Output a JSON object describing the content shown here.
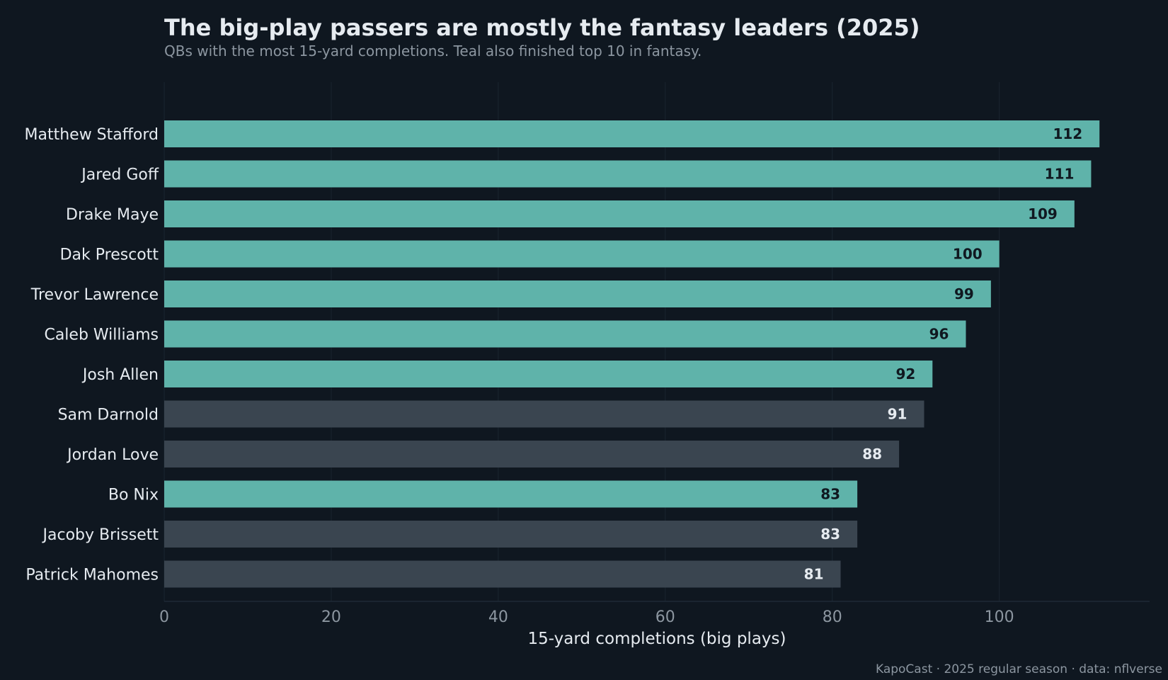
{
  "header": {
    "title": "The big-play passers are mostly the fantasy leaders (2025)",
    "subtitle": "QBs with the most 15-yard completions. Teal also finished top 10 in fantasy."
  },
  "footer": {
    "credit": "KapoCast · 2025 regular season · data: nflverse"
  },
  "colors": {
    "background": "#0f1720",
    "top10": "#5fb3aa",
    "other": "#3a4550",
    "label_dark": "#101820",
    "label_light": "#e6ebf0",
    "axis_text": "#8c96a0",
    "category_text": "#e6ebf0",
    "grid": "#1a2530"
  },
  "chart_data": {
    "type": "bar",
    "orientation": "horizontal",
    "title": "The big-play passers are mostly the fantasy leaders (2025)",
    "subtitle": "QBs with the most 15-yard completions. Teal also finished top 10 in fantasy.",
    "xlabel": "15-yard completions (big plays)",
    "ylabel": "",
    "xlim": [
      0,
      118
    ],
    "xticks": [
      0,
      20,
      40,
      60,
      80,
      100
    ],
    "grid": "vertical",
    "legend": "none",
    "categories": [
      "Matthew Stafford",
      "Jared Goff",
      "Drake Maye",
      "Dak Prescott",
      "Trevor Lawrence",
      "Caleb Williams",
      "Josh Allen",
      "Sam Darnold",
      "Jordan Love",
      "Bo Nix",
      "Jacoby Brissett",
      "Patrick Mahomes"
    ],
    "values": [
      112,
      111,
      109,
      100,
      99,
      96,
      92,
      91,
      88,
      83,
      83,
      81
    ],
    "top10_fantasy": [
      true,
      true,
      true,
      true,
      true,
      true,
      true,
      false,
      false,
      true,
      false,
      false
    ]
  }
}
